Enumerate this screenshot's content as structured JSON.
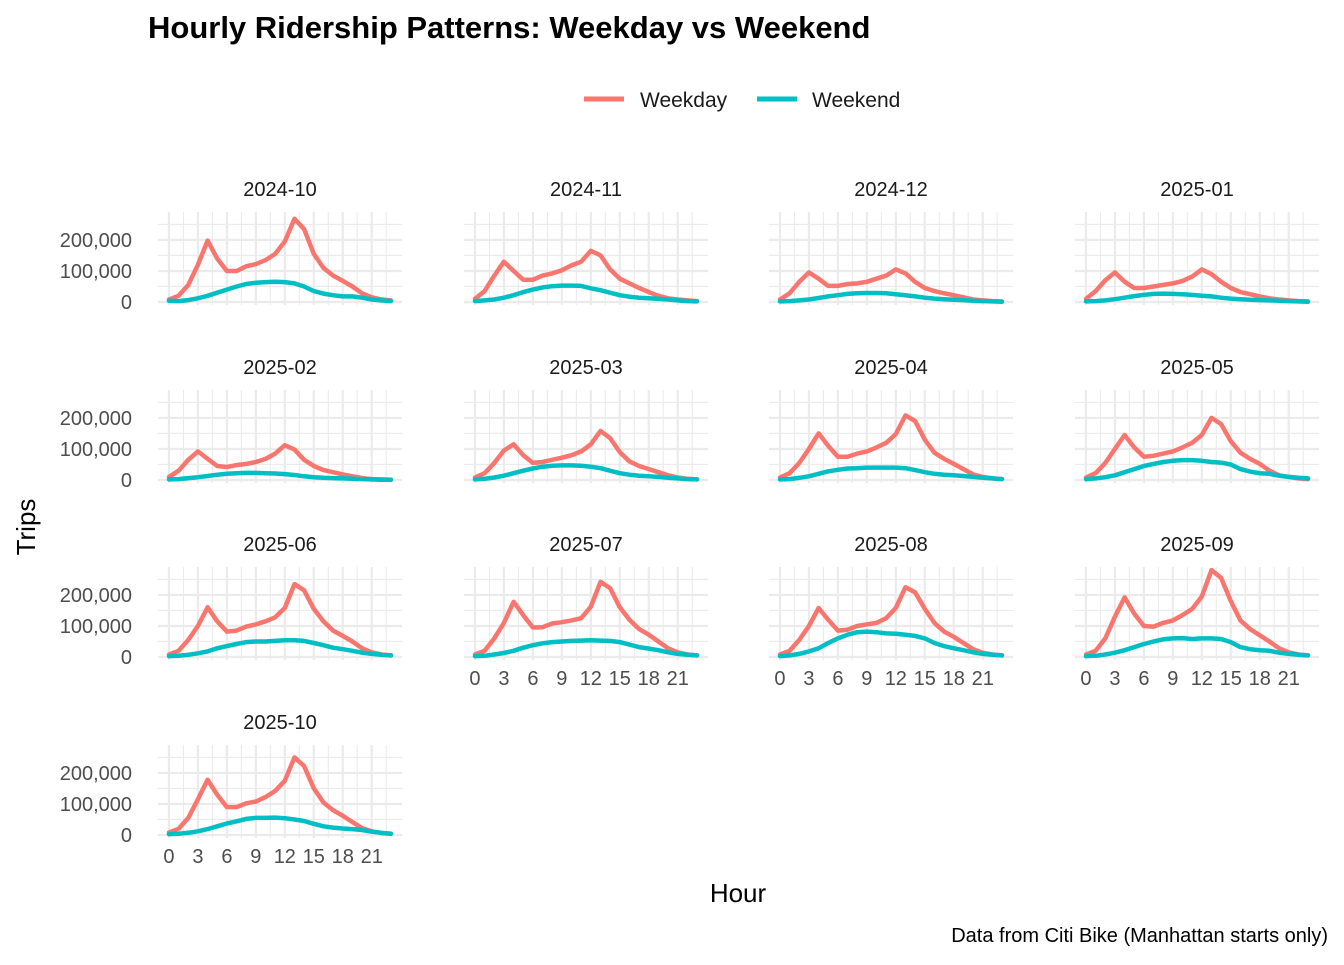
{
  "chart_data": {
    "type": "line",
    "title": "Hourly Ridership Patterns: Weekday vs Weekend",
    "xlabel": "Hour",
    "ylabel": "Trips",
    "caption": "Data from Citi Bike (Manhattan starts only)",
    "legend_position": "top",
    "grid": true,
    "xlim": [
      0,
      23
    ],
    "ylim": [
      0,
      290000
    ],
    "x_ticks": [
      0,
      3,
      6,
      9,
      12,
      15,
      18,
      21
    ],
    "x_tick_labels": [
      "0",
      "3",
      "6",
      "9",
      "12",
      "15",
      "18",
      "21"
    ],
    "y_ticks": [
      0,
      100000,
      200000
    ],
    "y_tick_labels": [
      "0",
      "100,000",
      "200,000"
    ],
    "series": [
      {
        "name": "Weekday",
        "color": "#F8766D"
      },
      {
        "name": "Weekend",
        "color": "#00BFC4"
      }
    ],
    "x": [
      0,
      1,
      2,
      3,
      4,
      5,
      6,
      7,
      8,
      9,
      10,
      11,
      12,
      13,
      14,
      15,
      16,
      17,
      18,
      19,
      20,
      21,
      22,
      23
    ],
    "panels": [
      {
        "label": "2024-10",
        "weekday": [
          8000,
          20000,
          55000,
          120000,
          198000,
          140000,
          100000,
          100000,
          115000,
          122000,
          135000,
          155000,
          195000,
          268000,
          235000,
          155000,
          110000,
          85000,
          68000,
          50000,
          28000,
          15000,
          8000,
          5000
        ],
        "weekend": [
          4000,
          3000,
          6000,
          12000,
          20000,
          30000,
          40000,
          50000,
          58000,
          62000,
          64000,
          65000,
          64000,
          60000,
          50000,
          35000,
          27000,
          22000,
          18000,
          18000,
          14000,
          8000,
          5000,
          3000
        ]
      },
      {
        "label": "2024-11",
        "weekday": [
          10000,
          35000,
          85000,
          130000,
          100000,
          72000,
          72000,
          85000,
          92000,
          102000,
          118000,
          130000,
          165000,
          150000,
          105000,
          75000,
          60000,
          45000,
          32000,
          20000,
          12000,
          8000,
          5000,
          3000
        ],
        "weekend": [
          3000,
          5000,
          8000,
          14000,
          22000,
          32000,
          40000,
          47000,
          51000,
          53000,
          53000,
          52000,
          44000,
          38000,
          30000,
          22000,
          17000,
          14000,
          12000,
          10000,
          8000,
          5000,
          3000,
          2000
        ]
      },
      {
        "label": "2024-12",
        "weekday": [
          8000,
          28000,
          65000,
          95000,
          75000,
          52000,
          52000,
          58000,
          60000,
          65000,
          75000,
          85000,
          105000,
          92000,
          65000,
          45000,
          35000,
          28000,
          22000,
          15000,
          8000,
          5000,
          3000,
          2000
        ],
        "weekend": [
          2000,
          3000,
          5000,
          8000,
          13000,
          18000,
          22000,
          26000,
          28000,
          29000,
          29000,
          28000,
          25000,
          22000,
          18000,
          14000,
          11000,
          9000,
          7000,
          6000,
          4000,
          3000,
          2000,
          1000
        ]
      },
      {
        "label": "2025-01",
        "weekday": [
          10000,
          35000,
          70000,
          95000,
          65000,
          45000,
          45000,
          50000,
          55000,
          60000,
          68000,
          82000,
          105000,
          90000,
          65000,
          45000,
          32000,
          25000,
          18000,
          12000,
          8000,
          5000,
          3000,
          2000
        ],
        "weekend": [
          2000,
          3000,
          5000,
          9000,
          14000,
          19000,
          23000,
          26000,
          27000,
          26000,
          25000,
          23000,
          20000,
          18000,
          14000,
          11000,
          9000,
          7000,
          6000,
          5000,
          4000,
          3000,
          2000,
          1000
        ]
      },
      {
        "label": "2025-02",
        "weekday": [
          10000,
          30000,
          65000,
          92000,
          68000,
          45000,
          42000,
          48000,
          52000,
          58000,
          68000,
          85000,
          112000,
          98000,
          65000,
          45000,
          32000,
          25000,
          18000,
          12000,
          6000,
          3000,
          2000,
          1000
        ],
        "weekend": [
          2000,
          3000,
          6000,
          9000,
          13000,
          17000,
          20000,
          22000,
          23000,
          23000,
          22000,
          21000,
          19000,
          16000,
          12000,
          9000,
          7000,
          6000,
          5000,
          4000,
          3000,
          2000,
          1000,
          1000
        ]
      },
      {
        "label": "2025-03",
        "weekday": [
          8000,
          22000,
          55000,
          95000,
          115000,
          80000,
          55000,
          58000,
          65000,
          72000,
          80000,
          92000,
          115000,
          158000,
          135000,
          90000,
          60000,
          45000,
          35000,
          25000,
          15000,
          8000,
          4000,
          2000
        ],
        "weekend": [
          2000,
          4000,
          8000,
          14000,
          22000,
          30000,
          37000,
          43000,
          46000,
          47000,
          47000,
          46000,
          43000,
          38000,
          30000,
          22000,
          17000,
          14000,
          12000,
          10000,
          7000,
          5000,
          3000,
          2000
        ]
      },
      {
        "label": "2025-04",
        "weekday": [
          8000,
          22000,
          55000,
          100000,
          150000,
          110000,
          75000,
          75000,
          85000,
          92000,
          105000,
          120000,
          148000,
          208000,
          190000,
          130000,
          88000,
          68000,
          52000,
          35000,
          18000,
          10000,
          5000,
          3000
        ],
        "weekend": [
          2000,
          3000,
          7000,
          12000,
          20000,
          28000,
          33000,
          37000,
          38000,
          40000,
          40000,
          40000,
          40000,
          38000,
          32000,
          25000,
          20000,
          17000,
          15000,
          13000,
          10000,
          7000,
          5000,
          3000
        ]
      },
      {
        "label": "2025-05",
        "weekday": [
          8000,
          22000,
          55000,
          100000,
          145000,
          105000,
          75000,
          78000,
          85000,
          92000,
          105000,
          120000,
          145000,
          200000,
          180000,
          125000,
          88000,
          68000,
          52000,
          30000,
          15000,
          10000,
          5000,
          3000
        ],
        "weekend": [
          3000,
          5000,
          9000,
          15000,
          25000,
          35000,
          45000,
          52000,
          58000,
          62000,
          64000,
          64000,
          62000,
          58000,
          56000,
          50000,
          35000,
          27000,
          22000,
          20000,
          14000,
          10000,
          7000,
          5000
        ]
      },
      {
        "label": "2025-06",
        "weekday": [
          8000,
          20000,
          55000,
          100000,
          160000,
          115000,
          82000,
          85000,
          98000,
          105000,
          115000,
          128000,
          158000,
          235000,
          215000,
          155000,
          115000,
          85000,
          68000,
          50000,
          28000,
          15000,
          8000,
          5000
        ],
        "weekend": [
          3000,
          4000,
          7000,
          12000,
          18000,
          28000,
          35000,
          42000,
          48000,
          50000,
          50000,
          52000,
          54000,
          54000,
          52000,
          45000,
          38000,
          30000,
          25000,
          20000,
          14000,
          10000,
          7000,
          5000
        ]
      },
      {
        "label": "2025-07",
        "weekday": [
          8000,
          20000,
          60000,
          110000,
          178000,
          135000,
          95000,
          96000,
          108000,
          112000,
          118000,
          125000,
          162000,
          242000,
          222000,
          160000,
          120000,
          90000,
          72000,
          50000,
          28000,
          15000,
          8000,
          5000
        ],
        "weekend": [
          3000,
          4000,
          8000,
          13000,
          20000,
          30000,
          38000,
          44000,
          48000,
          50000,
          52000,
          53000,
          54000,
          53000,
          52000,
          48000,
          40000,
          32000,
          27000,
          22000,
          15000,
          10000,
          7000,
          5000
        ]
      },
      {
        "label": "2025-08",
        "weekday": [
          8000,
          20000,
          55000,
          100000,
          158000,
          120000,
          85000,
          88000,
          100000,
          105000,
          110000,
          125000,
          158000,
          225000,
          208000,
          155000,
          110000,
          82000,
          65000,
          45000,
          25000,
          14000,
          8000,
          5000
        ],
        "weekend": [
          3000,
          5000,
          10000,
          18000,
          28000,
          45000,
          60000,
          72000,
          80000,
          82000,
          80000,
          76000,
          75000,
          72000,
          68000,
          60000,
          45000,
          35000,
          28000,
          22000,
          15000,
          10000,
          7000,
          5000
        ]
      },
      {
        "label": "2025-09",
        "weekday": [
          8000,
          20000,
          60000,
          130000,
          192000,
          140000,
          100000,
          98000,
          110000,
          118000,
          135000,
          155000,
          195000,
          280000,
          255000,
          180000,
          118000,
          90000,
          70000,
          50000,
          28000,
          15000,
          8000,
          5000
        ],
        "weekend": [
          3000,
          4000,
          8000,
          14000,
          22000,
          32000,
          42000,
          50000,
          57000,
          60000,
          61000,
          58000,
          60000,
          60000,
          58000,
          48000,
          32000,
          25000,
          22000,
          20000,
          14000,
          10000,
          7000,
          5000
        ]
      },
      {
        "label": "2025-10",
        "weekday": [
          8000,
          20000,
          55000,
          115000,
          178000,
          130000,
          90000,
          90000,
          102000,
          108000,
          122000,
          142000,
          175000,
          250000,
          222000,
          150000,
          105000,
          80000,
          62000,
          42000,
          22000,
          12000,
          6000,
          4000
        ],
        "weekend": [
          3000,
          4000,
          7000,
          12000,
          19000,
          28000,
          37000,
          44000,
          52000,
          55000,
          55000,
          56000,
          54000,
          50000,
          45000,
          36000,
          28000,
          24000,
          21000,
          19000,
          16000,
          11000,
          7000,
          4000
        ]
      }
    ]
  }
}
